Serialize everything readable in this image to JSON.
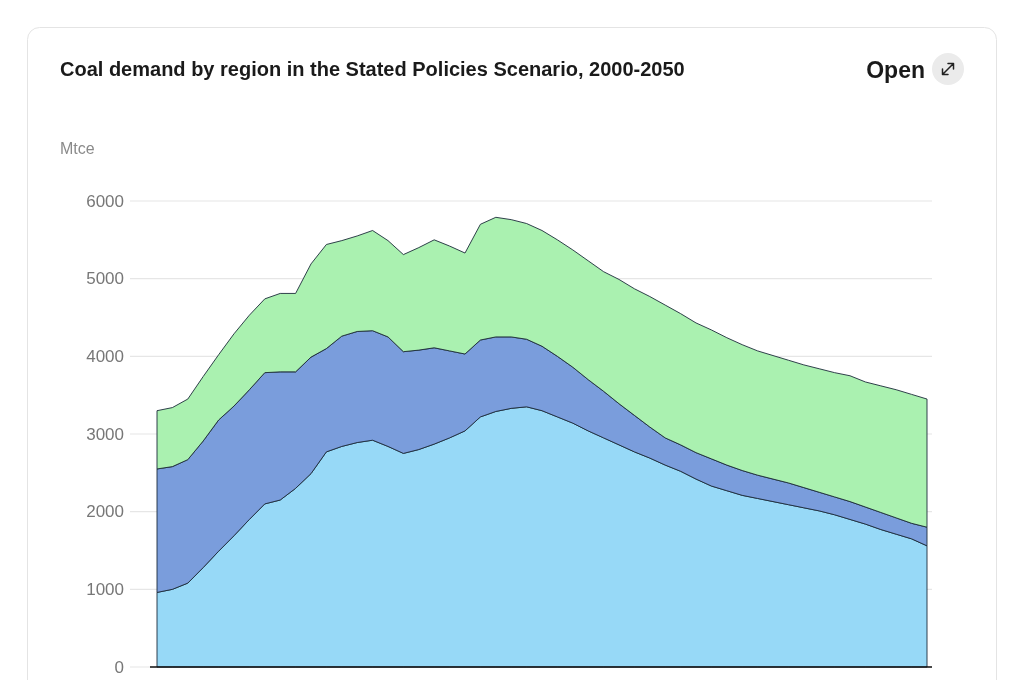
{
  "chart_data": {
    "type": "area",
    "title": "Coal demand by region in the Stated Policies Scenario, 2000-2050",
    "ylabel": "Mtce",
    "annotations": [
      "Open"
    ],
    "categories": [
      null,
      null,
      null,
      null,
      null,
      null,
      null,
      null,
      null,
      null,
      null,
      null,
      null,
      null,
      null,
      null,
      null,
      null,
      null,
      null,
      null,
      null,
      null,
      null,
      null,
      null,
      null,
      null,
      null,
      null,
      null,
      null,
      null,
      null,
      null,
      null,
      null,
      null,
      null,
      null,
      null,
      null,
      null,
      null,
      null,
      null,
      null,
      null,
      null,
      null,
      null
    ],
    "stacked": true,
    "series": [
      {
        "color": "#97d9f7",
        "values": [
          960,
          1000,
          1080,
          1280,
          1490,
          1690,
          1900,
          2100,
          2150,
          2300,
          2490,
          2770,
          2840,
          2890,
          2920,
          2840,
          2750,
          2800,
          2870,
          2950,
          3040,
          3220,
          3290,
          3330,
          3350,
          3300,
          3220,
          3140,
          3040,
          2950,
          2860,
          2770,
          2690,
          2600,
          2520,
          2420,
          2330,
          2270,
          2210,
          2170,
          2130,
          2090,
          2050,
          2010,
          1960,
          1900,
          1840,
          1770,
          1710,
          1650,
          1560
        ]
      },
      {
        "color": "#7a9ddc",
        "values": [
          1590,
          1580,
          1590,
          1630,
          1690,
          1670,
          1670,
          1690,
          1650,
          1500,
          1500,
          1330,
          1420,
          1430,
          1410,
          1410,
          1310,
          1280,
          1240,
          1120,
          990,
          990,
          960,
          920,
          870,
          830,
          780,
          720,
          660,
          600,
          530,
          470,
          400,
          350,
          340,
          340,
          350,
          330,
          320,
          300,
          290,
          280,
          260,
          240,
          230,
          230,
          220,
          220,
          210,
          200,
          240
        ]
      },
      {
        "color": "#aaf1b0",
        "values": [
          750,
          760,
          780,
          830,
          840,
          930,
          960,
          950,
          1010,
          1010,
          1200,
          1340,
          1230,
          1230,
          1290,
          1240,
          1250,
          1320,
          1390,
          1350,
          1300,
          1490,
          1540,
          1510,
          1490,
          1490,
          1500,
          1510,
          1530,
          1540,
          1600,
          1630,
          1680,
          1710,
          1690,
          1670,
          1660,
          1640,
          1620,
          1600,
          1590,
          1580,
          1580,
          1590,
          1600,
          1620,
          1610,
          1630,
          1650,
          1660,
          1650
        ]
      }
    ],
    "ylim": [
      0,
      6000
    ],
    "yticks": [
      0,
      1000,
      2000,
      3000,
      4000,
      5000,
      6000
    ],
    "grid": "y"
  }
}
